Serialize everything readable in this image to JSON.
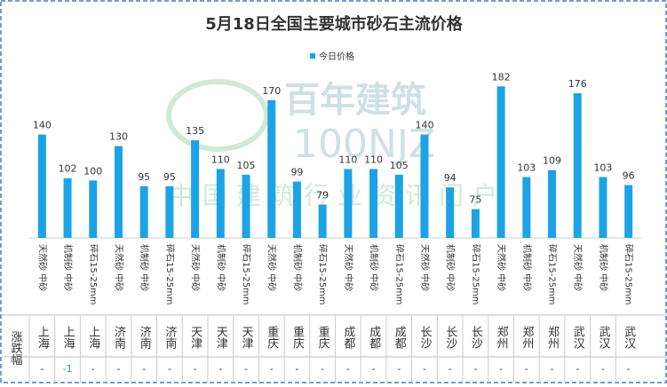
{
  "chart_data": {
    "type": "bar",
    "title": "5月18日全国主要城市砂石主流价格",
    "series": [
      {
        "name": "今日价格",
        "color": "#1ca3e6",
        "values": [
          140,
          102,
          100,
          130,
          95,
          95,
          135,
          110,
          105,
          170,
          99,
          79,
          110,
          110,
          105,
          140,
          94,
          75,
          182,
          103,
          109,
          176,
          103,
          96
        ]
      }
    ],
    "categories": [
      "天然砂 中砂",
      "机制砂 中砂",
      "碎石15-25mm",
      "天然砂 中砂",
      "机制砂 中砂",
      "碎石15-25mm",
      "天然砂 中砂",
      "机制砂 中砂",
      "碎石15-25mm",
      "天然砂 中砂",
      "机制砂 中砂",
      "碎石15-25mm",
      "天然砂 中砂",
      "机制砂 中砂",
      "碎石15-25mm",
      "天然砂 中砂",
      "机制砂 中砂",
      "碎石15-25mm",
      "天然砂 中砂",
      "机制砂 中砂",
      "碎石15-25mm",
      "天然砂 中砂",
      "机制砂 中砂",
      "碎石15-25mm"
    ],
    "ylim": [
      50,
      200
    ],
    "watermark": {
      "brand": "百年建筑",
      "code": "100NJZ",
      "slogan": "中国建筑行业资讯门户"
    }
  },
  "table": {
    "row_header": "涨跌幅",
    "cities": [
      "上海",
      "上海",
      "上海",
      "济南",
      "济南",
      "济南",
      "天津",
      "天津",
      "天津",
      "重庆",
      "重庆",
      "重庆",
      "成都",
      "成都",
      "成都",
      "长沙",
      "长沙",
      "长沙",
      "郑州",
      "郑州",
      "郑州",
      "武汉",
      "武汉",
      "武汉"
    ],
    "changes": [
      "-",
      -1,
      "-",
      "-",
      "-",
      "-",
      "-",
      "-",
      "-",
      "-",
      "-",
      "-",
      "-",
      "-",
      "-",
      "-",
      "-",
      "-",
      "-",
      "-",
      "-",
      "-",
      "-",
      "-"
    ]
  }
}
